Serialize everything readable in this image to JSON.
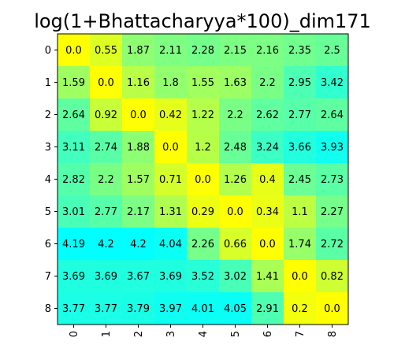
{
  "chart_data": {
    "type": "heatmap",
    "title": "log(1+Bhattacharyya*100)_dim171",
    "x_ticks": [
      "0",
      "1",
      "2",
      "3",
      "4",
      "5",
      "6",
      "7",
      "8"
    ],
    "y_ticks": [
      "0",
      "1",
      "2",
      "3",
      "4",
      "5",
      "6",
      "7",
      "8"
    ],
    "colormap": "cyan-green-yellow (high=cyan, low=yellow)",
    "value_range": [
      0,
      4.2
    ],
    "values": [
      [
        0.0,
        0.55,
        1.87,
        2.11,
        2.28,
        2.15,
        2.16,
        2.35,
        2.5
      ],
      [
        1.59,
        0.0,
        1.16,
        1.8,
        1.55,
        1.63,
        2.2,
        2.95,
        3.42
      ],
      [
        2.64,
        0.92,
        0.0,
        0.42,
        1.22,
        2.2,
        2.62,
        2.77,
        2.64
      ],
      [
        3.11,
        2.74,
        1.88,
        0.0,
        1.2,
        2.48,
        3.24,
        3.66,
        3.93
      ],
      [
        2.82,
        2.2,
        1.57,
        0.71,
        0.0,
        1.26,
        0.4,
        2.45,
        2.73
      ],
      [
        3.01,
        2.77,
        2.17,
        1.31,
        0.29,
        0.0,
        0.34,
        1.1,
        2.27
      ],
      [
        4.19,
        4.2,
        4.2,
        4.04,
        2.26,
        0.66,
        0.0,
        1.74,
        2.72
      ],
      [
        3.69,
        3.69,
        3.67,
        3.69,
        3.52,
        3.02,
        1.41,
        0.0,
        0.82
      ],
      [
        3.77,
        3.77,
        3.79,
        3.97,
        4.01,
        4.05,
        2.91,
        0.2,
        0.0
      ]
    ],
    "labels": [
      [
        "0.0",
        "0.55",
        "1.87",
        "2.11",
        "2.28",
        "2.15",
        "2.16",
        "2.35",
        "2.5"
      ],
      [
        "1.59",
        "0.0",
        "1.16",
        "1.8",
        "1.55",
        "1.63",
        "2.2",
        "2.95",
        "3.42"
      ],
      [
        "2.64",
        "0.92",
        "0.0",
        "0.42",
        "1.22",
        "2.2",
        "2.62",
        "2.77",
        "2.64"
      ],
      [
        "3.11",
        "2.74",
        "1.88",
        "0.0",
        "1.2",
        "2.48",
        "3.24",
        "3.66",
        "3.93"
      ],
      [
        "2.82",
        "2.2",
        "1.57",
        "0.71",
        "0.0",
        "1.26",
        "0.4",
        "2.45",
        "2.73"
      ],
      [
        "3.01",
        "2.77",
        "2.17",
        "1.31",
        "0.29",
        "0.0",
        "0.34",
        "1.1",
        "2.27"
      ],
      [
        "4.19",
        "4.2",
        "4.2",
        "4.04",
        "2.26",
        "0.66",
        "0.0",
        "1.74",
        "2.72"
      ],
      [
        "3.69",
        "3.69",
        "3.67",
        "3.69",
        "3.52",
        "3.02",
        "1.41",
        "0.0",
        "0.82"
      ],
      [
        "3.77",
        "3.77",
        "3.79",
        "3.97",
        "4.01",
        "4.05",
        "2.91",
        "0.2",
        "0.0"
      ]
    ],
    "grid": false
  }
}
